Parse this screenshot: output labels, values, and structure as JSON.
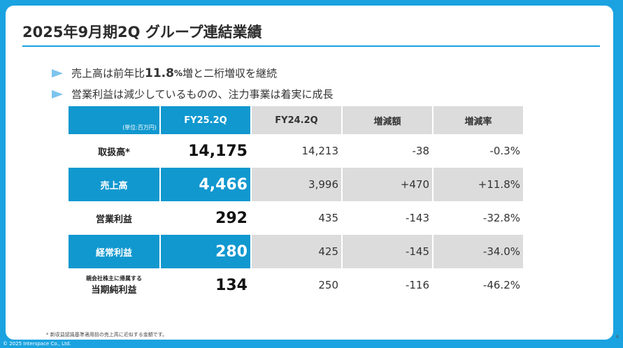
{
  "title": "2025年9月期2Q グループ連結業績",
  "bullets": [
    {
      "prefix": "売上高は前年比",
      "highlight": "11.8",
      "unit": "%",
      "suffix": "増と二桁増収を継続"
    },
    {
      "text": "営業利益は減少しているものの、注力事業は着実に成長"
    }
  ],
  "table": {
    "unit_note": "(単位:百万円)",
    "headers": [
      "FY25.2Q",
      "FY24.2Q",
      "増減額",
      "増減率"
    ],
    "rows": [
      {
        "label": "取扱高*",
        "cur": "14,175",
        "prev": "14,213",
        "diff": "-38",
        "rate": "-0.3%"
      },
      {
        "label": "売上高",
        "cur": "4,466",
        "prev": "3,996",
        "diff": "+470",
        "rate": "+11.8%"
      },
      {
        "label": "営業利益",
        "cur": "292",
        "prev": "435",
        "diff": "-143",
        "rate": "-32.8%"
      },
      {
        "label": "経常利益",
        "cur": "280",
        "prev": "425",
        "diff": "-145",
        "rate": "-34.0%"
      },
      {
        "label_sub": "親会社株主に帰属する",
        "label": "当期純利益",
        "cur": "134",
        "prev": "250",
        "diff": "-116",
        "rate": "-46.2%"
      }
    ]
  },
  "footnote": "* 新収益認識基準適用前の売上高に近似する金額です。",
  "copyright": "© 2025 Interspace Co., Ltd.",
  "page_number": "4",
  "colors": {
    "accent": "#1198cf",
    "frame": "#1aa3e0",
    "gray": "#dcdcdc",
    "bullet": "#7cc4ee"
  }
}
